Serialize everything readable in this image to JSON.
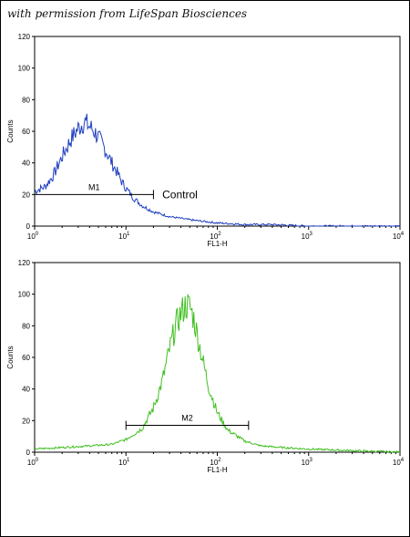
{
  "watermark": "with permission from LifeSpan Biosciences",
  "chart_data": [
    {
      "type": "line",
      "xscale": "log",
      "xlim": [
        1,
        10000
      ],
      "ylim": [
        0,
        120
      ],
      "xlabel": "FL1-H",
      "ylabel": "Counts",
      "x_ticks": [
        "10",
        "10",
        "10",
        "10",
        "10"
      ],
      "x_tick_exps": [
        "0",
        "1",
        "2",
        "3",
        "4"
      ],
      "y_ticks": [
        "0",
        "20",
        "40",
        "60",
        "80",
        "100",
        "120"
      ],
      "color": "#1f3fbf",
      "series": [
        {
          "x": [
            1.0,
            1.3,
            1.6,
            2.0,
            2.5,
            3.0,
            3.5,
            4.0,
            4.5,
            5.0,
            6.0,
            7.0,
            8.0,
            9.0,
            10.0,
            12.0,
            15.0,
            20.0,
            30.0,
            50.0,
            100.0,
            200.0,
            400.0,
            1000.0,
            10000.0
          ],
          "y": [
            22,
            25,
            32,
            44,
            55,
            62,
            66,
            63,
            60,
            56,
            48,
            40,
            34,
            28,
            24,
            18,
            13,
            9,
            6,
            4,
            2,
            1,
            1,
            0,
            0
          ]
        }
      ],
      "markers": [
        {
          "label": "M1",
          "x1": 1.0,
          "x2": 20.0,
          "y": 20
        }
      ],
      "annotations": [
        {
          "text": "Control",
          "x": 25.0,
          "y": 20
        }
      ]
    },
    {
      "type": "line",
      "xscale": "log",
      "xlim": [
        1,
        10000
      ],
      "ylim": [
        0,
        120
      ],
      "xlabel": "FL1-H",
      "ylabel": "Counts",
      "x_ticks": [
        "10",
        "10",
        "10",
        "10",
        "10"
      ],
      "x_tick_exps": [
        "0",
        "1",
        "2",
        "3",
        "4"
      ],
      "y_ticks": [
        "0",
        "20",
        "40",
        "60",
        "80",
        "100",
        "120"
      ],
      "color": "#3fbf1f",
      "series": [
        {
          "x": [
            1.0,
            2.0,
            4.0,
            7.0,
            10.0,
            15.0,
            20.0,
            25.0,
            30.0,
            35.0,
            40.0,
            45.0,
            50.0,
            55.0,
            60.0,
            70.0,
            80.0,
            100.0,
            130.0,
            200.0,
            300.0,
            500.0,
            1000.0,
            3000.0,
            10000.0
          ],
          "y": [
            2,
            3,
            4,
            5,
            8,
            15,
            28,
            45,
            65,
            80,
            88,
            93,
            92,
            85,
            75,
            57,
            42,
            25,
            14,
            7,
            4,
            3,
            2,
            1,
            0
          ]
        }
      ],
      "markers": [
        {
          "label": "M2",
          "x1": 10.0,
          "x2": 220.0,
          "y": 17
        }
      ],
      "annotations": []
    }
  ]
}
